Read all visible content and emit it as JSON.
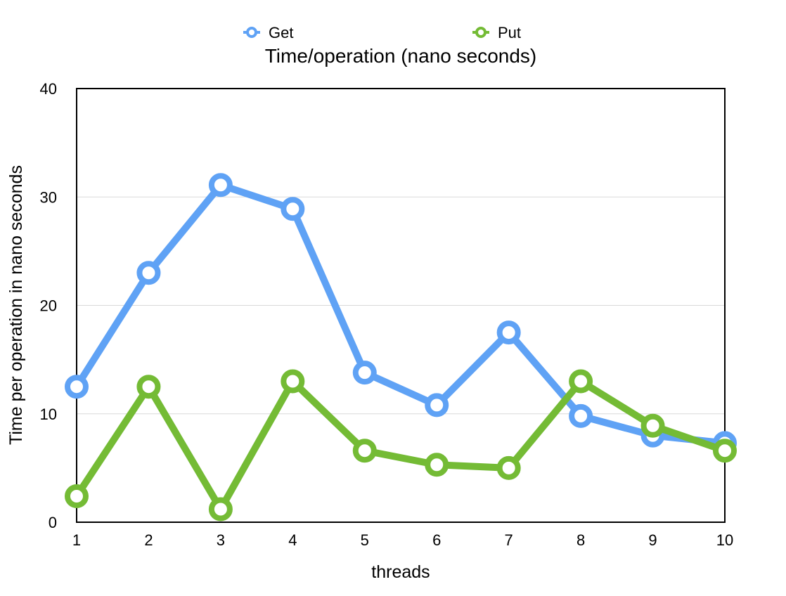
{
  "chart_data": {
    "type": "line",
    "title": "Time/operation (nano seconds)",
    "xlabel": "threads",
    "ylabel": "Time per operation in nano seconds",
    "x": [
      1,
      2,
      3,
      4,
      5,
      6,
      7,
      8,
      9,
      10
    ],
    "xticks": [
      "1",
      "2",
      "3",
      "4",
      "5",
      "6",
      "7",
      "8",
      "9",
      "10"
    ],
    "ylim": [
      0,
      40
    ],
    "yticks": [
      "0",
      "10",
      "20",
      "30",
      "40"
    ],
    "grid": true,
    "legend_position": "top",
    "series": [
      {
        "name": "Get",
        "color": "#5fa2f5",
        "values": [
          12.5,
          23.0,
          31.1,
          28.9,
          13.8,
          10.8,
          17.5,
          9.8,
          8.0,
          7.3
        ]
      },
      {
        "name": "Put",
        "color": "#74bb35",
        "values": [
          2.4,
          12.5,
          1.2,
          13.0,
          6.6,
          5.3,
          5.0,
          13.0,
          8.9,
          6.6
        ]
      }
    ]
  }
}
